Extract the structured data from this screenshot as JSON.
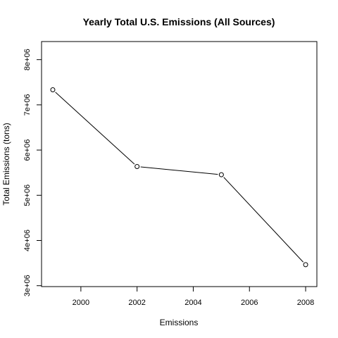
{
  "chart_data": {
    "type": "line",
    "title": "Yearly Total U.S. Emissions (All Sources)",
    "xlabel": "Emissions",
    "ylabel": "Total Emissions (tons)",
    "x": [
      1999,
      2002,
      2005,
      2008
    ],
    "y": [
      7332967,
      5635780,
      5454703,
      3464206
    ],
    "xlim": [
      1998.6,
      2008.4
    ],
    "ylim": [
      2980000,
      8400000
    ],
    "x_ticks": [
      2000,
      2002,
      2004,
      2006,
      2008
    ],
    "x_tick_labels": [
      "2000",
      "2002",
      "2004",
      "2006",
      "2008"
    ],
    "y_ticks": [
      3000000,
      4000000,
      5000000,
      6000000,
      7000000,
      8000000
    ],
    "y_tick_labels": [
      "3e+06",
      "4e+06",
      "5e+06",
      "6e+06",
      "7e+06",
      "8e+06"
    ],
    "grid": false,
    "marker": "open-circle",
    "line_color": "#000000"
  }
}
